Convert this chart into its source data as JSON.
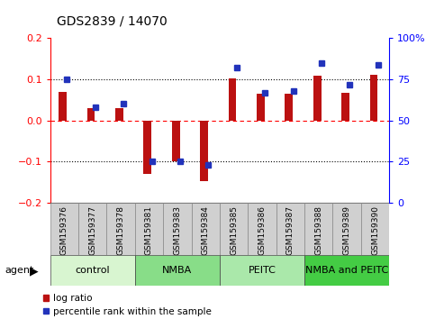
{
  "title": "GDS2839 / 14070",
  "samples": [
    "GSM159376",
    "GSM159377",
    "GSM159378",
    "GSM159381",
    "GSM159383",
    "GSM159384",
    "GSM159385",
    "GSM159386",
    "GSM159387",
    "GSM159388",
    "GSM159389",
    "GSM159390"
  ],
  "log_ratio": [
    0.07,
    0.03,
    0.03,
    -0.13,
    -0.1,
    -0.148,
    0.103,
    0.065,
    0.065,
    0.108,
    0.068,
    0.112
  ],
  "percentile_rank": [
    75,
    58,
    60,
    25,
    25,
    23,
    82,
    67,
    68,
    85,
    72,
    84
  ],
  "groups": [
    {
      "label": "control",
      "start": 0,
      "end": 3,
      "color": "#d8f5d0"
    },
    {
      "label": "NMBA",
      "start": 3,
      "end": 6,
      "color": "#88dd88"
    },
    {
      "label": "PEITC",
      "start": 6,
      "end": 9,
      "color": "#aae8aa"
    },
    {
      "label": "NMBA and PEITC",
      "start": 9,
      "end": 12,
      "color": "#44cc44"
    }
  ],
  "ylim": [
    -0.2,
    0.2
  ],
  "y2lim": [
    0,
    100
  ],
  "yticks": [
    -0.2,
    -0.1,
    0.0,
    0.1,
    0.2
  ],
  "y2ticks": [
    0,
    25,
    50,
    75,
    100
  ],
  "y2ticklabels": [
    "0",
    "25",
    "50",
    "75",
    "100%"
  ],
  "bar_color": "#bb1111",
  "dot_color": "#2233bb",
  "bg_color": "#ffffff",
  "plot_bg": "#ffffff",
  "agent_label": "agent",
  "legend_items": [
    {
      "label": "log ratio",
      "color": "#bb1111"
    },
    {
      "label": "percentile rank within the sample",
      "color": "#2233bb"
    }
  ],
  "title_fontsize": 10,
  "tick_fontsize": 8,
  "sample_fontsize": 6.5,
  "group_fontsize": 8
}
